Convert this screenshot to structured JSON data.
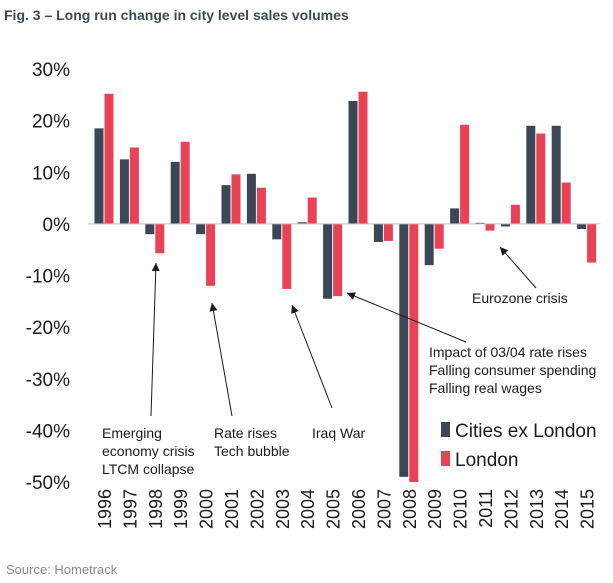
{
  "figure": {
    "title": "Fig. 3 – Long run change in city level sales volumes",
    "source": "Source: Hometrack"
  },
  "colors": {
    "cities_ex_london": "#3b4656",
    "london": "#e94256",
    "axis": "#bfbfbf"
  },
  "chart_data": {
    "type": "bar",
    "title": "",
    "xlabel": "",
    "ylabel": "",
    "ylim": [
      -50,
      30
    ],
    "yticks": [
      30,
      20,
      10,
      0,
      -10,
      -20,
      -30,
      -40,
      -50
    ],
    "ytick_labels": [
      "30%",
      "20%",
      "10%",
      "0%",
      "-10%",
      "-20%",
      "-30%",
      "-40%",
      "-50%"
    ],
    "categories": [
      "1996",
      "1997",
      "1998",
      "1999",
      "2000",
      "2001",
      "2002",
      "2003",
      "2004",
      "2005",
      "2006",
      "2007",
      "2008",
      "2009",
      "2010",
      "2011",
      "2012",
      "2013",
      "2014",
      "2015"
    ],
    "series": [
      {
        "name": "Cities ex London",
        "color": "#3b4656",
        "values": [
          18.5,
          12.5,
          -2,
          12,
          -2,
          7.5,
          9.7,
          -3,
          0.3,
          -14.5,
          23.8,
          -3.5,
          -49,
          -8,
          3,
          0.2,
          -0.5,
          19,
          19,
          -1
        ]
      },
      {
        "name": "London",
        "color": "#e94256",
        "values": [
          25.2,
          14.8,
          -5.7,
          15.9,
          -12,
          9.6,
          7,
          -12.6,
          5.1,
          -14,
          25.6,
          -3.3,
          -50,
          -4.8,
          19.2,
          -1.3,
          3.7,
          17.5,
          8,
          -7.5
        ]
      }
    ],
    "legend_position": "bottom-right",
    "grid": false,
    "annotations": [
      {
        "id": "emerging",
        "lines": [
          "Emerging",
          "economy crisis",
          "LTCM collapse"
        ]
      },
      {
        "id": "rate-rises",
        "lines": [
          "Rate rises",
          "Tech bubble"
        ]
      },
      {
        "id": "iraq",
        "lines": [
          "Iraq War"
        ]
      },
      {
        "id": "impact",
        "lines": [
          "Impact of 03/04 rate rises",
          "Falling consumer spending",
          "Falling real wages"
        ]
      },
      {
        "id": "eurozone",
        "lines": [
          "Eurozone crisis"
        ]
      }
    ]
  }
}
